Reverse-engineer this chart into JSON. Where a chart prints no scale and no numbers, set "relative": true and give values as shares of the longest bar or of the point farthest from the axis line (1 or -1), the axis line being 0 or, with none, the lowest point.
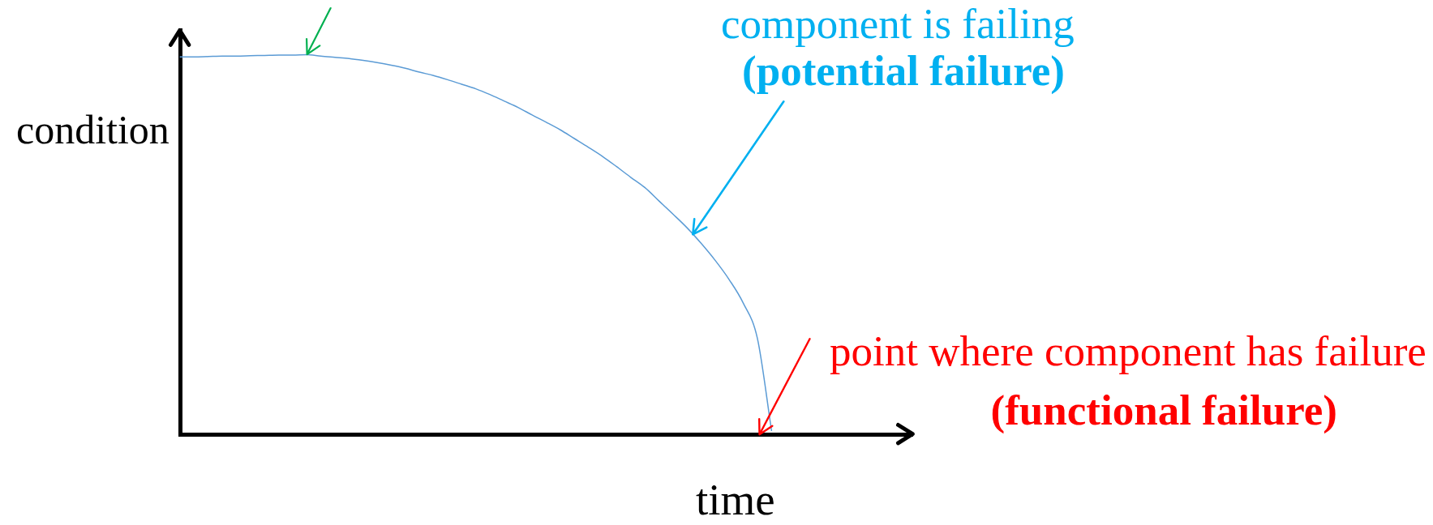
{
  "chart_data": {
    "type": "line",
    "relative": true,
    "color": "#5b9bd5",
    "xlabel": "time",
    "ylabel": "condition",
    "categories": [
      null,
      null,
      null,
      null,
      null,
      null,
      null,
      null,
      null,
      null,
      null,
      null,
      null,
      null,
      null,
      null,
      null,
      null,
      null,
      null,
      null,
      null,
      null,
      null,
      null,
      null,
      null,
      null,
      null,
      null,
      null,
      null,
      null,
      null,
      null,
      null,
      null,
      null,
      null,
      null,
      null,
      null,
      null,
      null,
      null,
      null,
      null,
      null,
      null,
      null,
      null,
      null,
      null
    ],
    "values": [
      0.994,
      0.994,
      0.995,
      0.996,
      0.996,
      0.997,
      0.998,
      0.999,
      0.999,
      1,
      0.996,
      0.993,
      0.99,
      0.985,
      0.979,
      0.972,
      0.964,
      0.954,
      0.945,
      0.934,
      0.922,
      0.91,
      0.895,
      0.878,
      0.861,
      0.841,
      0.822,
      0.802,
      0.779,
      0.756,
      0.732,
      0.705,
      0.677,
      0.65,
      0.615,
      0.58,
      0.544,
      0.503,
      0.458,
      0.407,
      0.345,
      0.252,
      0.01,
      null,
      null,
      null,
      null,
      null,
      null,
      null,
      null,
      null,
      null
    ],
    "annotations": [
      "component is failing",
      "(potential failure)",
      "point where component has failure",
      "(functional failure)"
    ]
  }
}
